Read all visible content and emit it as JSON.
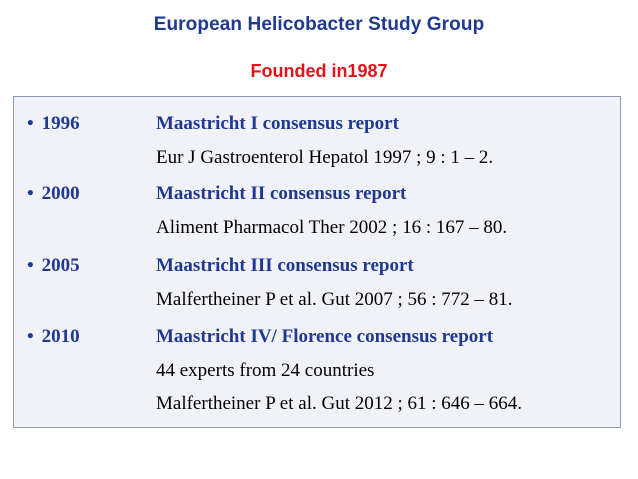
{
  "header": {
    "title": "European Helicobacter Study Group",
    "subtitle": "Founded in1987"
  },
  "entries": [
    {
      "bullet": "•",
      "year": "1996",
      "report": "Maastricht I consensus report",
      "refs": [
        "Eur J Gastroenterol Hepatol 1997 ; 9 : 1 – 2."
      ]
    },
    {
      "bullet": "•",
      "year": "2000",
      "report": "Maastricht II consensus report",
      "refs": [
        "Aliment Pharmacol Ther 2002 ; 16 : 167 – 80."
      ]
    },
    {
      "bullet": "•",
      "year": "2005",
      "report": "Maastricht III consensus report",
      "refs": [
        "Malfertheiner P et al. Gut 2007 ; 56 : 772 – 81."
      ]
    },
    {
      "bullet": "•",
      "year": "2010",
      "report": "Maastricht IV/ Florence consensus report",
      "refs": [
        "44 experts from 24 countries",
        "Malfertheiner P et al. Gut 2012 ; 61 : 646 – 664."
      ]
    }
  ],
  "colors": {
    "title": "#1f3890",
    "subtitle": "#e3131b",
    "panel_background": "#f0f2f7",
    "panel_border": "#8e9ab8"
  }
}
